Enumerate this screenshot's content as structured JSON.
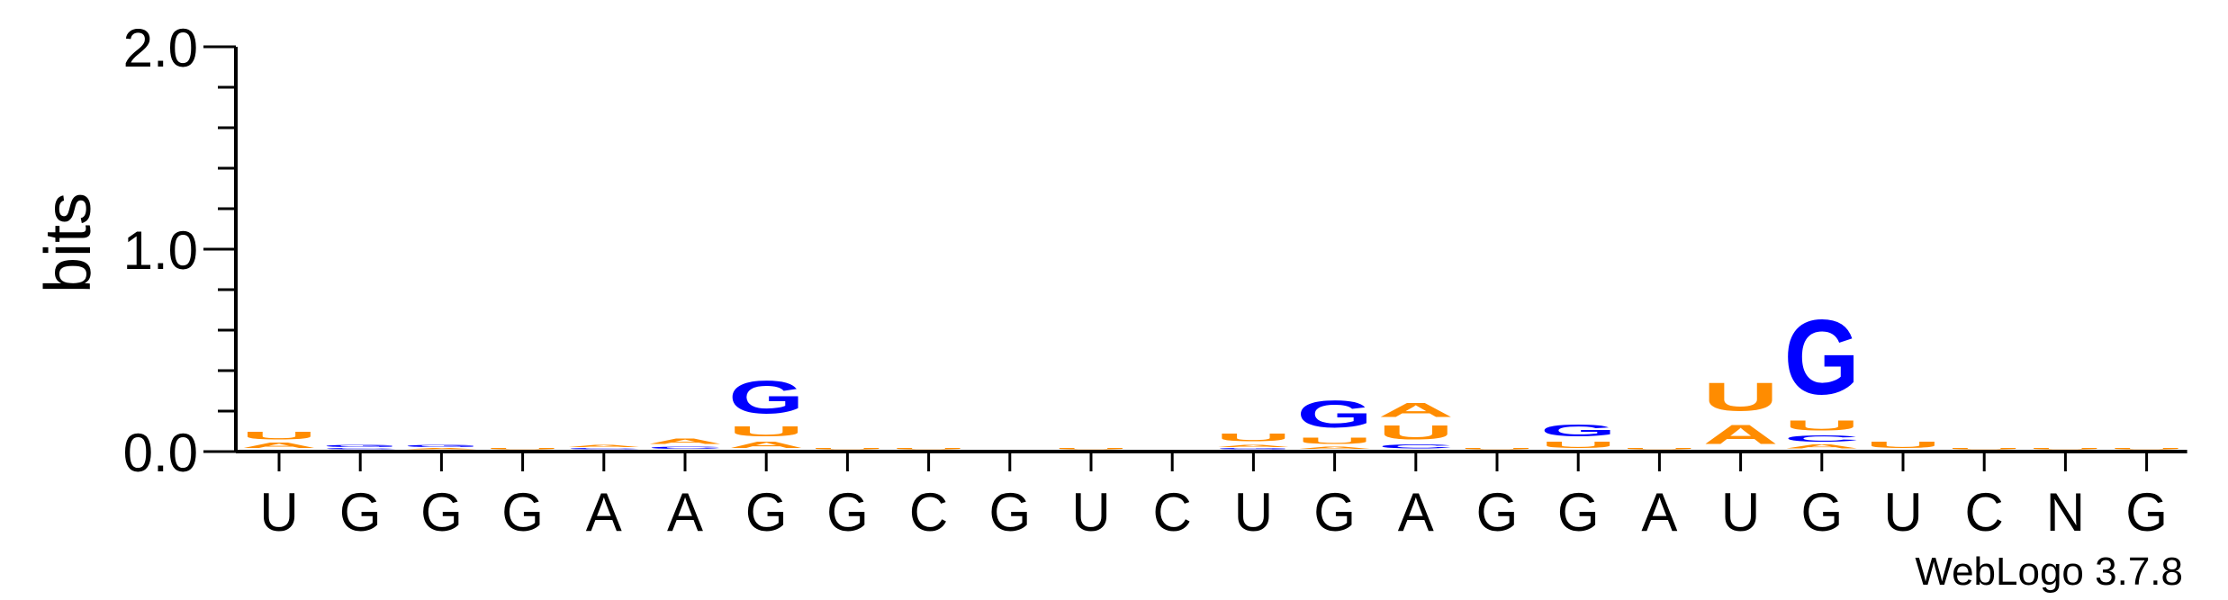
{
  "chart_data": {
    "type": "sequence-logo",
    "ylabel": "bits",
    "ylim": [
      0,
      2.0
    ],
    "yticks": [
      "0.0",
      "1.0",
      "2.0"
    ],
    "colors": {
      "A": "#ff8c00",
      "U": "#ff8c00",
      "G": "#0000ff",
      "C": "#0000ff"
    },
    "positions": [
      {
        "label": "U",
        "stack": [
          {
            "letter": "A",
            "bits": 0.04
          },
          {
            "letter": "U",
            "bits": 0.06
          }
        ]
      },
      {
        "label": "G",
        "stack": [
          {
            "letter": "C",
            "bits": 0.01
          },
          {
            "letter": "G",
            "bits": 0.02
          }
        ]
      },
      {
        "label": "G",
        "stack": [
          {
            "letter": "A",
            "bits": 0.01
          },
          {
            "letter": "G",
            "bits": 0.02
          }
        ]
      },
      {
        "label": "G",
        "stack": [
          {
            "letter": "U",
            "bits": 0.01
          }
        ]
      },
      {
        "label": "A",
        "stack": [
          {
            "letter": "C",
            "bits": 0.01
          },
          {
            "letter": "A",
            "bits": 0.02
          }
        ]
      },
      {
        "label": "A",
        "stack": [
          {
            "letter": "C",
            "bits": 0.02
          },
          {
            "letter": "A",
            "bits": 0.04
          }
        ]
      },
      {
        "label": "G",
        "stack": [
          {
            "letter": "A",
            "bits": 0.05
          },
          {
            "letter": "U",
            "bits": 0.08
          },
          {
            "letter": "G",
            "bits": 0.26
          }
        ]
      },
      {
        "label": "G",
        "stack": [
          {
            "letter": "U",
            "bits": 0.01
          }
        ]
      },
      {
        "label": "C",
        "stack": [
          {
            "letter": "U",
            "bits": 0.01
          }
        ]
      },
      {
        "label": "G",
        "stack": []
      },
      {
        "label": "U",
        "stack": [
          {
            "letter": "U",
            "bits": 0.01
          }
        ]
      },
      {
        "label": "C",
        "stack": []
      },
      {
        "label": "U",
        "stack": [
          {
            "letter": "G",
            "bits": 0.01
          },
          {
            "letter": "A",
            "bits": 0.02
          },
          {
            "letter": "U",
            "bits": 0.06
          }
        ]
      },
      {
        "label": "G",
        "stack": [
          {
            "letter": "A",
            "bits": 0.02
          },
          {
            "letter": "U",
            "bits": 0.05
          },
          {
            "letter": "G",
            "bits": 0.21
          }
        ]
      },
      {
        "label": "A",
        "stack": [
          {
            "letter": "C",
            "bits": 0.03
          },
          {
            "letter": "U",
            "bits": 0.11
          },
          {
            "letter": "A",
            "bits": 0.11
          }
        ]
      },
      {
        "label": "G",
        "stack": [
          {
            "letter": "U",
            "bits": 0.01
          }
        ]
      },
      {
        "label": "G",
        "stack": [
          {
            "letter": "U",
            "bits": 0.05
          },
          {
            "letter": "G",
            "bits": 0.09
          }
        ]
      },
      {
        "label": "A",
        "stack": [
          {
            "letter": "U",
            "bits": 0.01
          }
        ]
      },
      {
        "label": "U",
        "stack": [
          {
            "letter": "A",
            "bits": 0.15
          },
          {
            "letter": "U",
            "bits": 0.22
          }
        ]
      },
      {
        "label": "G",
        "stack": [
          {
            "letter": "A",
            "bits": 0.03
          },
          {
            "letter": "C",
            "bits": 0.05
          },
          {
            "letter": "U",
            "bits": 0.08
          },
          {
            "letter": "G",
            "bits": 0.59
          }
        ]
      },
      {
        "label": "U",
        "stack": [
          {
            "letter": "U",
            "bits": 0.05
          }
        ]
      },
      {
        "label": "C",
        "stack": [
          {
            "letter": "U",
            "bits": 0.01
          }
        ]
      },
      {
        "label": "N",
        "stack": [
          {
            "letter": "U",
            "bits": 0.01
          }
        ]
      },
      {
        "label": "G",
        "stack": [
          {
            "letter": "U",
            "bits": 0.01
          }
        ]
      }
    ]
  },
  "footer": {
    "version": "WebLogo 3.7.8"
  }
}
